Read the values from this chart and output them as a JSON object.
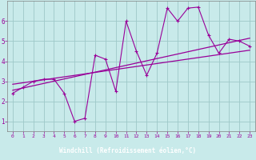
{
  "xlabel": "Windchill (Refroidissement éolien,°C)",
  "bg_color": "#c8eaea",
  "grid_color": "#9ec8c8",
  "line_color": "#990099",
  "xlabel_bg": "#6600aa",
  "xlabel_fg": "#ffffff",
  "xlim": [
    -0.5,
    23.5
  ],
  "ylim": [
    0.5,
    7.0
  ],
  "xticks": [
    0,
    1,
    2,
    3,
    4,
    5,
    6,
    7,
    8,
    9,
    10,
    11,
    12,
    13,
    14,
    15,
    16,
    17,
    18,
    19,
    20,
    21,
    22,
    23
  ],
  "yticks": [
    1,
    2,
    3,
    4,
    5,
    6
  ],
  "scatter_x": [
    0,
    1,
    2,
    3,
    4,
    5,
    6,
    7,
    8,
    9,
    10,
    11,
    12,
    13,
    14,
    15,
    16,
    17,
    18,
    19,
    20,
    21,
    22,
    23
  ],
  "scatter_y": [
    2.4,
    2.7,
    3.0,
    3.1,
    3.1,
    2.4,
    1.0,
    1.15,
    4.3,
    4.1,
    2.5,
    6.0,
    4.5,
    3.3,
    4.4,
    6.65,
    6.0,
    6.65,
    6.7,
    5.3,
    4.4,
    5.1,
    5.0,
    4.75
  ],
  "trend1_x": [
    0,
    23
  ],
  "trend1_y": [
    2.55,
    5.15
  ],
  "trend2_x": [
    0,
    23
  ],
  "trend2_y": [
    2.85,
    4.55
  ],
  "trend3_x": [
    0,
    23
  ],
  "trend3_y": [
    2.7,
    4.85
  ]
}
